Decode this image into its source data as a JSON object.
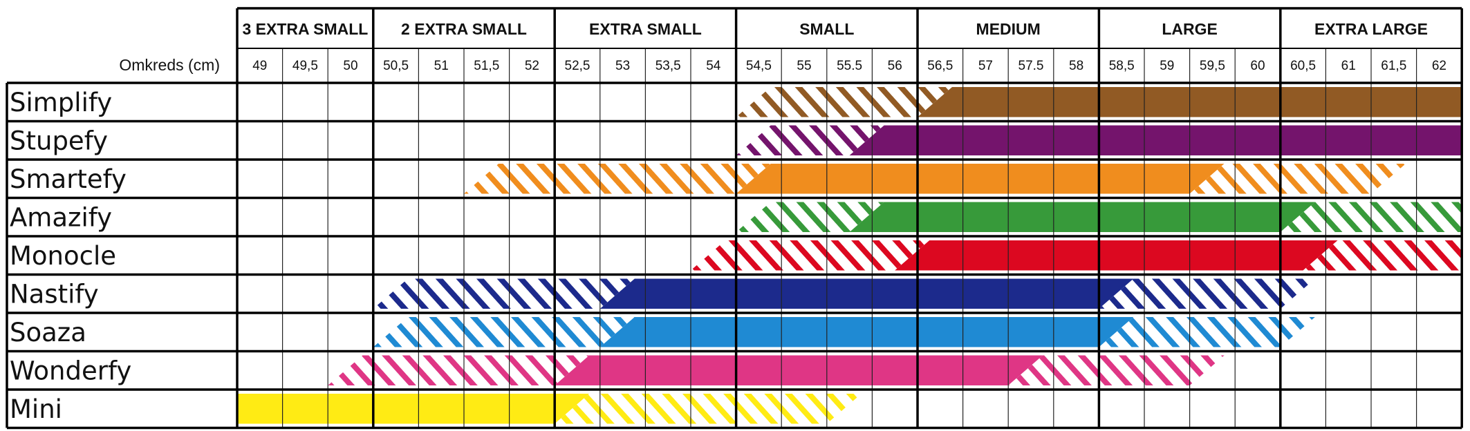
{
  "chart_data": {
    "type": "table",
    "x_label": "Omkreds (cm)",
    "circumferences": [
      "49",
      "49,5",
      "50",
      "50,5",
      "51",
      "51,5",
      "52",
      "52,5",
      "53",
      "53,5",
      "54",
      "54,5",
      "55",
      "55.5",
      "56",
      "56,5",
      "57",
      "57.5",
      "58",
      "58,5",
      "59",
      "59,5",
      "60",
      "60,5",
      "61",
      "61,5",
      "62"
    ],
    "size_groups": [
      {
        "label": "3 EXTRA SMALL",
        "from": 0,
        "count": 3
      },
      {
        "label": "2 EXTRA SMALL",
        "from": 3,
        "count": 4
      },
      {
        "label": "EXTRA SMALL",
        "from": 7,
        "count": 4
      },
      {
        "label": "SMALL",
        "from": 11,
        "count": 4
      },
      {
        "label": "MEDIUM",
        "from": 15,
        "count": 4
      },
      {
        "label": "LARGE",
        "from": 19,
        "count": 4
      },
      {
        "label": "EXTRA LARGE",
        "from": 23,
        "count": 4
      }
    ],
    "series": [
      {
        "name": "Simplify",
        "color": "#915A24",
        "solid": [
          15,
          27
        ],
        "hatch_in": [
          11,
          15
        ],
        "hatch_out": null
      },
      {
        "name": "Stupefy",
        "color": "#74146C",
        "solid": [
          13.5,
          27
        ],
        "hatch_in": [
          11,
          13.5
        ],
        "hatch_out": null
      },
      {
        "name": "Smartefy",
        "color": "#F08D1E",
        "solid": [
          11,
          21
        ],
        "hatch_in": [
          5,
          11
        ],
        "hatch_out": [
          21,
          25
        ]
      },
      {
        "name": "Amazify",
        "color": "#379A3A",
        "solid": [
          13.5,
          23
        ],
        "hatch_in": [
          11,
          13.5
        ],
        "hatch_out": [
          23,
          27
        ]
      },
      {
        "name": "Monocle",
        "color": "#DC0820",
        "solid": [
          14.5,
          23.5
        ],
        "hatch_in": [
          10,
          14.5
        ],
        "hatch_out": [
          23.5,
          27
        ]
      },
      {
        "name": "Nastify",
        "color": "#1C2A8C",
        "solid": [
          8,
          19
        ],
        "hatch_in": [
          3,
          8
        ],
        "hatch_out": [
          19,
          23
        ]
      },
      {
        "name": "Soaza",
        "color": "#1F8AD3",
        "solid": [
          8,
          19
        ],
        "hatch_in": [
          3,
          8
        ],
        "hatch_out": [
          19,
          23
        ]
      },
      {
        "name": "Wonderfy",
        "color": "#DF3685",
        "solid": [
          7,
          17
        ],
        "hatch_in": [
          2,
          7
        ],
        "hatch_out": [
          17,
          21
        ]
      },
      {
        "name": "Mini",
        "color": "#FFEB14",
        "solid": [
          0,
          7
        ],
        "hatch_in": null,
        "hatch_out": [
          7,
          13
        ]
      }
    ]
  }
}
